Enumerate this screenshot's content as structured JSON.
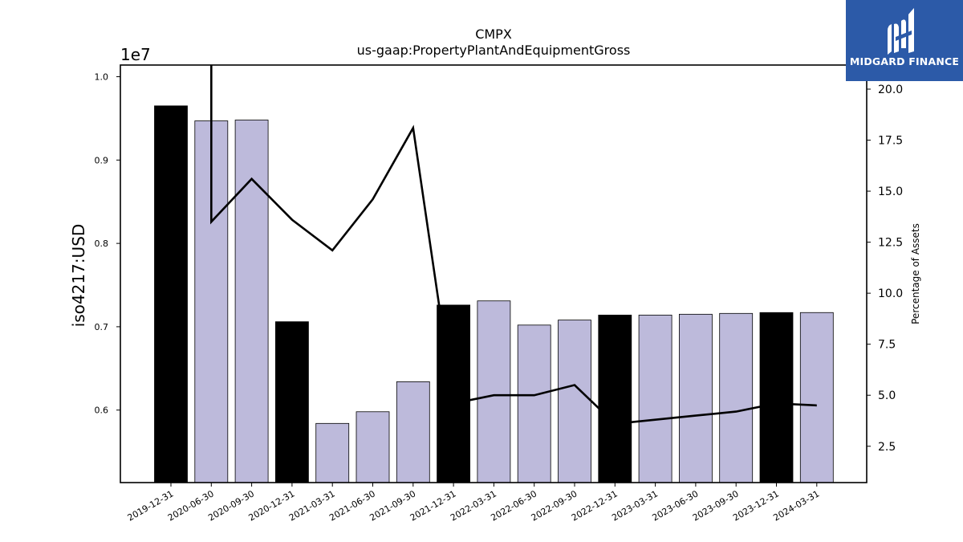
{
  "chart_data": {
    "type": "bar",
    "title": "CMPX",
    "subtitle": "us-gaap:PropertyPlantAndEquipmentGross",
    "ylabel": "iso4217:USD",
    "y_scale_label": "1e7",
    "y2label": "Percentage of Assets",
    "categories": [
      "2019-12-31",
      "2020-06-30",
      "2020-09-30",
      "2020-12-31",
      "2021-03-31",
      "2021-06-30",
      "2021-09-30",
      "2021-12-31",
      "2022-03-31",
      "2022-06-30",
      "2022-09-30",
      "2022-12-31",
      "2023-03-31",
      "2023-06-30",
      "2023-09-30",
      "2023-12-31",
      "2024-03-31"
    ],
    "series": [
      {
        "type": "bar",
        "values": [
          9650000,
          9470000,
          9480000,
          7060000,
          5840000,
          5980000,
          6340000,
          7260000,
          7310000,
          7020000,
          7080000,
          7140000,
          7140000,
          7150000,
          7160000,
          7170000,
          7170000
        ],
        "bar_colors": [
          "#000000",
          "#bdbadb",
          "#bdbadb",
          "#000000",
          "#bdbadb",
          "#bdbadb",
          "#bdbadb",
          "#000000",
          "#bdbadb",
          "#bdbadb",
          "#bdbadb",
          "#000000",
          "#bdbadb",
          "#bdbadb",
          "#bdbadb",
          "#000000",
          "#bdbadb"
        ]
      },
      {
        "type": "line",
        "axis": "right",
        "color": "#000000",
        "values": [
          null,
          13.5,
          15.6,
          13.6,
          12.1,
          14.6,
          18.1,
          4.6,
          5.0,
          5.0,
          5.5,
          3.6,
          3.8,
          4.0,
          4.2,
          4.6,
          4.5
        ],
        "start_value_off_chart": 25
      }
    ],
    "ylim": [
      5130000,
      10140000
    ],
    "y_ticks": [
      {
        "value": 6000000,
        "label": "0.6"
      },
      {
        "value": 7000000,
        "label": "0.7"
      },
      {
        "value": 8000000,
        "label": "0.8"
      },
      {
        "value": 9000000,
        "label": "0.9"
      },
      {
        "value": 10000000,
        "label": "1.0"
      }
    ],
    "y2lim": [
      0.72,
      21.18
    ],
    "y2_ticks": [
      {
        "value": 2.5,
        "label": "2.5"
      },
      {
        "value": 5.0,
        "label": "5.0"
      },
      {
        "value": 7.5,
        "label": "7.5"
      },
      {
        "value": 10.0,
        "label": "10.0"
      },
      {
        "value": 12.5,
        "label": "12.5"
      },
      {
        "value": 15.0,
        "label": "15.0"
      },
      {
        "value": 17.5,
        "label": "17.5"
      },
      {
        "value": 20.0,
        "label": "20.0"
      }
    ],
    "grid": false,
    "legend": "none"
  },
  "logo": {
    "text": "MIDGARD FINANCE",
    "background": "#2c5aa8"
  }
}
